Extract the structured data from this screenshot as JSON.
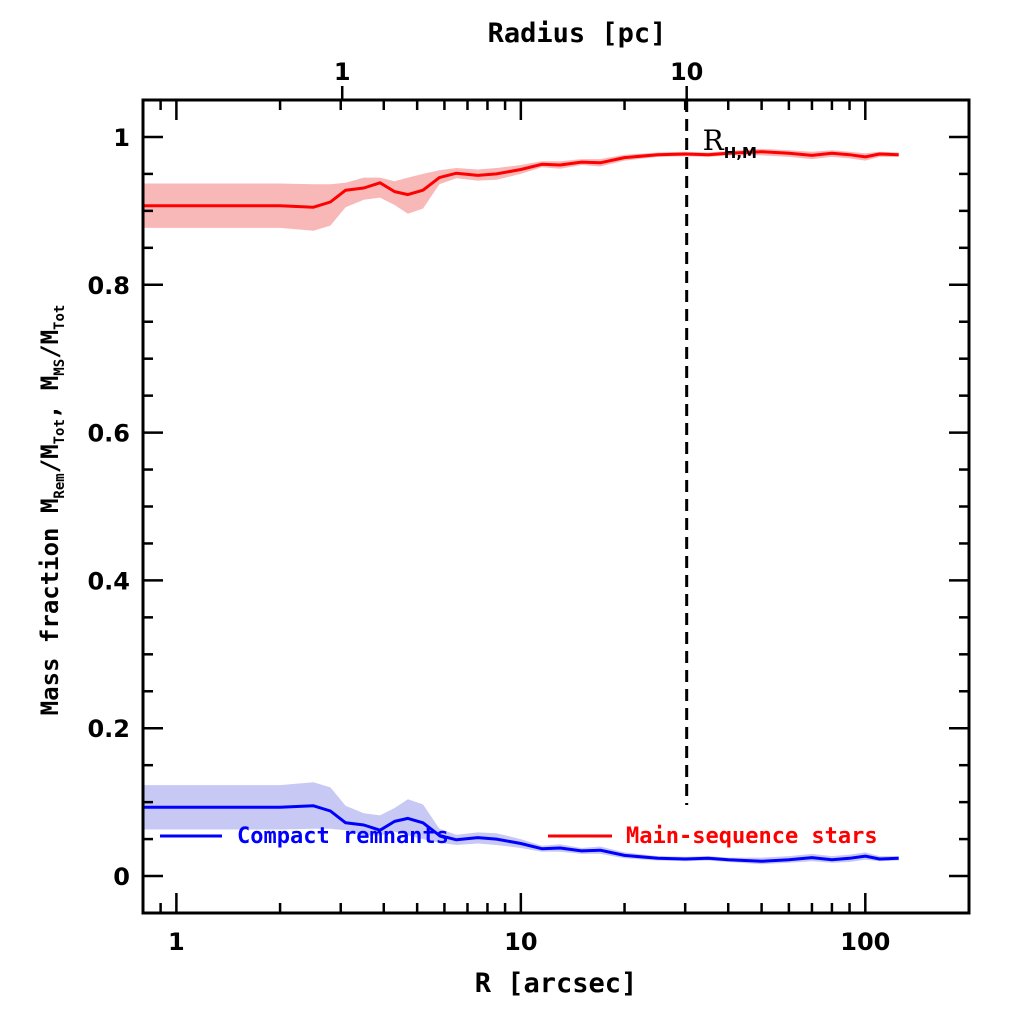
{
  "chart_data": {
    "type": "line",
    "xlabel": "R [arcsec]",
    "top_xlabel": "Radius [pc]",
    "ylabel": {
      "prefix": "Mass fraction  M",
      "sub1": "Rem",
      "mid1": "/M",
      "sub2": "Tot",
      "mid2": ", M",
      "sub3": "MS",
      "mid3": "/M",
      "sub4": "Tot"
    },
    "x_scale": "log",
    "xlim": [
      0.8,
      200
    ],
    "ylim": [
      -0.05,
      1.05
    ],
    "x_ticks": [
      {
        "value": 1,
        "label": "1"
      },
      {
        "value": 10,
        "label": "10"
      },
      {
        "value": 100,
        "label": "100"
      }
    ],
    "top_ticks": [
      {
        "value": 3.03,
        "label": "1"
      },
      {
        "value": 30.3,
        "label": "10"
      }
    ],
    "y_ticks": [
      {
        "value": 0,
        "label": "0"
      },
      {
        "value": 0.2,
        "label": "0.2"
      },
      {
        "value": 0.4,
        "label": "0.4"
      },
      {
        "value": 0.6,
        "label": "0.6"
      },
      {
        "value": 0.8,
        "label": "0.8"
      },
      {
        "value": 1,
        "label": "1"
      }
    ],
    "reference_line": {
      "x": 30.3,
      "label": "R",
      "label_sub": "H,M"
    },
    "series": [
      {
        "name": "Main-sequence stars",
        "color": "#ff0000",
        "band_color": "#f9b8b8",
        "x": [
          0.8,
          1,
          1.5,
          2,
          2.5,
          2.8,
          3.1,
          3.5,
          3.9,
          4.3,
          4.7,
          5.2,
          5.8,
          6.5,
          7.5,
          8.5,
          10,
          11.5,
          13,
          15,
          17,
          20,
          25,
          30,
          35,
          40,
          50,
          60,
          70,
          80,
          90,
          100,
          110,
          125
        ],
        "values": [
          0.907,
          0.907,
          0.907,
          0.907,
          0.905,
          0.912,
          0.928,
          0.931,
          0.938,
          0.926,
          0.922,
          0.928,
          0.945,
          0.951,
          0.948,
          0.95,
          0.956,
          0.963,
          0.962,
          0.966,
          0.965,
          0.972,
          0.976,
          0.977,
          0.976,
          0.978,
          0.98,
          0.978,
          0.975,
          0.978,
          0.976,
          0.973,
          0.977,
          0.976
        ],
        "upper": [
          0.937,
          0.937,
          0.937,
          0.937,
          0.936,
          0.936,
          0.938,
          0.945,
          0.945,
          0.94,
          0.945,
          0.95,
          0.955,
          0.958,
          0.956,
          0.958,
          0.962,
          0.967,
          0.967,
          0.97,
          0.97,
          0.976,
          0.979,
          0.98,
          0.979,
          0.981,
          0.984,
          0.982,
          0.98,
          0.982,
          0.98,
          0.978,
          0.98,
          0.979
        ],
        "lower": [
          0.877,
          0.877,
          0.877,
          0.877,
          0.873,
          0.88,
          0.905,
          0.915,
          0.918,
          0.908,
          0.896,
          0.903,
          0.936,
          0.944,
          0.941,
          0.942,
          0.95,
          0.959,
          0.957,
          0.962,
          0.96,
          0.968,
          0.973,
          0.974,
          0.973,
          0.975,
          0.975,
          0.973,
          0.97,
          0.973,
          0.971,
          0.968,
          0.973,
          0.973
        ]
      },
      {
        "name": "Compact remnants",
        "color": "#0000ff",
        "band_color": "#c8c8f5",
        "x": [
          0.8,
          1,
          1.5,
          2,
          2.5,
          2.8,
          3.1,
          3.5,
          3.9,
          4.3,
          4.7,
          5.2,
          5.8,
          6.5,
          7.5,
          8.5,
          10,
          11.5,
          13,
          15,
          17,
          20,
          25,
          30,
          35,
          40,
          50,
          60,
          70,
          80,
          90,
          100,
          110,
          125
        ],
        "values": [
          0.093,
          0.093,
          0.093,
          0.093,
          0.095,
          0.088,
          0.072,
          0.069,
          0.062,
          0.074,
          0.078,
          0.072,
          0.055,
          0.049,
          0.052,
          0.05,
          0.044,
          0.037,
          0.038,
          0.034,
          0.035,
          0.028,
          0.024,
          0.023,
          0.024,
          0.022,
          0.02,
          0.022,
          0.025,
          0.022,
          0.024,
          0.027,
          0.023,
          0.024
        ],
        "upper": [
          0.123,
          0.123,
          0.123,
          0.123,
          0.127,
          0.12,
          0.095,
          0.085,
          0.082,
          0.092,
          0.104,
          0.097,
          0.064,
          0.056,
          0.059,
          0.058,
          0.05,
          0.041,
          0.043,
          0.038,
          0.04,
          0.032,
          0.027,
          0.026,
          0.027,
          0.025,
          0.025,
          0.027,
          0.03,
          0.027,
          0.029,
          0.032,
          0.027,
          0.027
        ],
        "lower": [
          0.063,
          0.063,
          0.063,
          0.063,
          0.064,
          0.064,
          0.062,
          0.055,
          0.055,
          0.06,
          0.055,
          0.05,
          0.045,
          0.042,
          0.044,
          0.042,
          0.038,
          0.033,
          0.033,
          0.03,
          0.03,
          0.024,
          0.021,
          0.02,
          0.021,
          0.019,
          0.016,
          0.018,
          0.02,
          0.018,
          0.019,
          0.022,
          0.02,
          0.021
        ]
      }
    ],
    "legend": [
      {
        "label": "Compact remnants",
        "color": "#0000ff"
      },
      {
        "label": "Main-sequence stars",
        "color": "#ff0000"
      }
    ]
  }
}
